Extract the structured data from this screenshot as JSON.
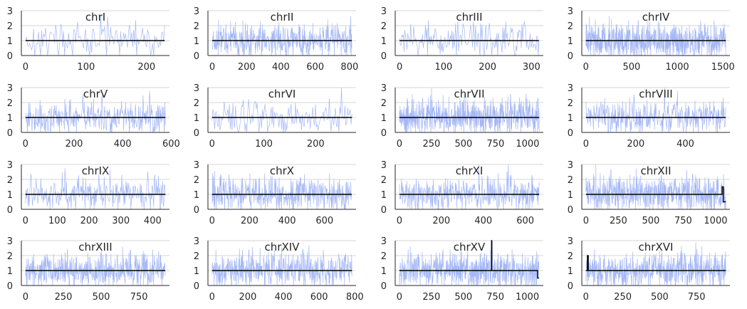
{
  "colors": {
    "noise": "#a4b7f6",
    "line": "#000000",
    "grid": "#c8c8c8",
    "axis": "#262626"
  },
  "chart_data": [
    {
      "type": "line",
      "title": "chrI",
      "xlim": [
        -7,
        238
      ],
      "ylim": [
        0,
        3
      ],
      "xticks": [
        0,
        100,
        200
      ],
      "yticks": [
        0,
        1,
        2,
        3
      ],
      "series": [
        {
          "x": [
            0,
            230
          ],
          "values": [
            1,
            1
          ]
        }
      ]
    },
    {
      "type": "line",
      "title": "chrII",
      "xlim": [
        -25,
        838
      ],
      "ylim": [
        0,
        3
      ],
      "xticks": [
        0,
        200,
        400,
        600,
        800
      ],
      "yticks": [
        0,
        1,
        2,
        3
      ],
      "series": [
        {
          "x": [
            0,
            813
          ],
          "values": [
            1,
            1
          ]
        }
      ]
    },
    {
      "type": "line",
      "title": "chrIII",
      "xlim": [
        -10,
        327
      ],
      "ylim": [
        0,
        3
      ],
      "xticks": [
        0,
        100,
        200,
        300
      ],
      "yticks": [
        0,
        1,
        2,
        3
      ],
      "series": [
        {
          "x": [
            0,
            317
          ],
          "values": [
            1,
            1
          ]
        }
      ]
    },
    {
      "type": "line",
      "title": "chrIV",
      "xlim": [
        -45,
        1576
      ],
      "ylim": [
        0,
        3
      ],
      "xticks": [
        0,
        500,
        1000,
        1500
      ],
      "yticks": [
        0,
        1,
        2,
        3
      ],
      "series": [
        {
          "x": [
            0,
            1531
          ],
          "values": [
            1,
            1
          ]
        }
      ]
    },
    {
      "type": "line",
      "title": "chrV",
      "xlim": [
        -17,
        593
      ],
      "ylim": [
        0,
        3
      ],
      "xticks": [
        0,
        200,
        400,
        600
      ],
      "yticks": [
        0,
        1,
        2,
        3
      ],
      "series": [
        {
          "x": [
            0,
            576
          ],
          "values": [
            1,
            1
          ]
        }
      ]
    },
    {
      "type": "line",
      "title": "chrVI",
      "xlim": [
        -8,
        278
      ],
      "ylim": [
        0,
        3
      ],
      "xticks": [
        0,
        100,
        200
      ],
      "yticks": [
        0,
        1,
        2,
        3
      ],
      "series": [
        {
          "x": [
            0,
            270
          ],
          "values": [
            1,
            1
          ]
        }
      ]
    },
    {
      "type": "line",
      "title": "chrVII",
      "xlim": [
        -33,
        1123
      ],
      "ylim": [
        0,
        3
      ],
      "xticks": [
        0,
        250,
        500,
        750,
        1000
      ],
      "yticks": [
        0,
        1,
        2,
        3
      ],
      "series": [
        {
          "x": [
            0,
            1090
          ],
          "values": [
            1,
            1
          ]
        }
      ]
    },
    {
      "type": "line",
      "title": "chrVIII",
      "xlim": [
        -17,
        579
      ],
      "ylim": [
        0,
        3
      ],
      "xticks": [
        0,
        200,
        400
      ],
      "yticks": [
        0,
        1,
        2,
        3
      ],
      "series": [
        {
          "x": [
            0,
            562
          ],
          "values": [
            1,
            1
          ]
        }
      ]
    },
    {
      "type": "line",
      "title": "chrIX",
      "xlim": [
        -13,
        453
      ],
      "ylim": [
        0,
        3
      ],
      "xticks": [
        0,
        100,
        200,
        300,
        400
      ],
      "yticks": [
        0,
        1,
        2,
        3
      ],
      "series": [
        {
          "x": [
            0,
            440
          ],
          "values": [
            1,
            1
          ]
        }
      ]
    },
    {
      "type": "line",
      "title": "chrX",
      "xlim": [
        -22,
        768
      ],
      "ylim": [
        0,
        3
      ],
      "xticks": [
        0,
        200,
        400,
        600
      ],
      "yticks": [
        0,
        1,
        2,
        3
      ],
      "series": [
        {
          "x": [
            0,
            745
          ],
          "values": [
            1,
            1
          ]
        }
      ]
    },
    {
      "type": "line",
      "title": "chrXI",
      "xlim": [
        -20,
        686
      ],
      "ylim": [
        0,
        3
      ],
      "xticks": [
        0,
        200,
        400,
        600
      ],
      "yticks": [
        0,
        1,
        2,
        3
      ],
      "series": [
        {
          "x": [
            0,
            666
          ],
          "values": [
            1,
            1
          ]
        }
      ]
    },
    {
      "type": "line",
      "title": "chrXII",
      "xlim": [
        -32,
        1110
      ],
      "ylim": [
        0,
        3
      ],
      "xticks": [
        0,
        250,
        500,
        750,
        1000
      ],
      "yticks": [
        0,
        1,
        2,
        3
      ],
      "series": [
        {
          "x": [
            0,
            1050,
            1050,
            1060,
            1060,
            1078
          ],
          "values": [
            1,
            1,
            1.5,
            1.5,
            0.5,
            0.5
          ]
        }
      ]
    },
    {
      "type": "line",
      "title": "chrXIII",
      "xlim": [
        -28,
        952
      ],
      "ylim": [
        0,
        3
      ],
      "xticks": [
        0,
        250,
        500,
        750
      ],
      "yticks": [
        0,
        1,
        2,
        3
      ],
      "series": [
        {
          "x": [
            0,
            924
          ],
          "values": [
            1,
            1
          ]
        }
      ]
    },
    {
      "type": "line",
      "title": "chrXIV",
      "xlim": [
        -23,
        807
      ],
      "ylim": [
        0,
        3
      ],
      "xticks": [
        0,
        200,
        400,
        600,
        800
      ],
      "yticks": [
        0,
        1,
        2,
        3
      ],
      "series": [
        {
          "x": [
            0,
            784
          ],
          "values": [
            1,
            1
          ]
        }
      ]
    },
    {
      "type": "line",
      "title": "chrXV",
      "xlim": [
        -33,
        1125
      ],
      "ylim": [
        0,
        3
      ],
      "xticks": [
        0,
        250,
        500,
        750,
        1000
      ],
      "yticks": [
        0,
        1,
        2,
        3
      ],
      "series": [
        {
          "x": [
            0,
            720,
            720,
            722,
            722,
            1080,
            1080,
            1091
          ],
          "values": [
            1,
            1,
            3,
            3,
            1,
            1,
            0.5,
            0.5
          ]
        }
      ]
    },
    {
      "type": "line",
      "title": "chrXVI",
      "xlim": [
        -28,
        976
      ],
      "ylim": [
        0,
        3
      ],
      "xticks": [
        0,
        250,
        500,
        750
      ],
      "yticks": [
        0,
        1,
        2,
        3
      ],
      "series": [
        {
          "x": [
            0,
            10,
            10,
            16,
            16,
            948
          ],
          "values": [
            1,
            1,
            2,
            2,
            1,
            1
          ]
        }
      ]
    }
  ]
}
